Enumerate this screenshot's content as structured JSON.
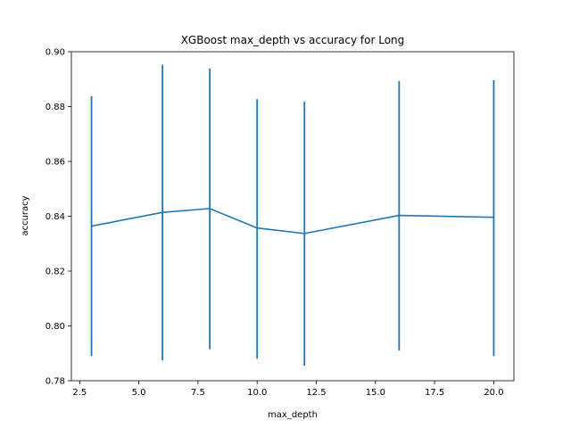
{
  "chart_data": {
    "type": "line",
    "title": "XGBoost max_depth vs accuracy for Long",
    "xlabel": "max_depth",
    "ylabel": "accuracy",
    "xlim": [
      2.15,
      20.85
    ],
    "ylim": [
      0.78,
      0.9
    ],
    "xticks": [
      2.5,
      5.0,
      7.5,
      10.0,
      12.5,
      15.0,
      17.5,
      20.0
    ],
    "xtick_labels": [
      "2.5",
      "5.0",
      "7.5",
      "10.0",
      "12.5",
      "15.0",
      "17.5",
      "20.0"
    ],
    "yticks": [
      0.78,
      0.8,
      0.82,
      0.84,
      0.86,
      0.88,
      0.9
    ],
    "ytick_labels": [
      "0.78",
      "0.80",
      "0.82",
      "0.84",
      "0.86",
      "0.88",
      "0.90"
    ],
    "grid": false,
    "color": "#1f77b4",
    "series": [
      {
        "x": [
          3,
          6,
          8,
          10,
          12,
          16,
          20
        ],
        "y": [
          0.8364,
          0.8414,
          0.8428,
          0.8357,
          0.8337,
          0.8403,
          0.8396
        ],
        "yerr_low": [
          0.789,
          0.7875,
          0.7915,
          0.788,
          0.7855,
          0.791,
          0.789
        ],
        "yerr_high": [
          0.8838,
          0.8953,
          0.8939,
          0.8827,
          0.8818,
          0.8893,
          0.8896
        ]
      }
    ]
  }
}
